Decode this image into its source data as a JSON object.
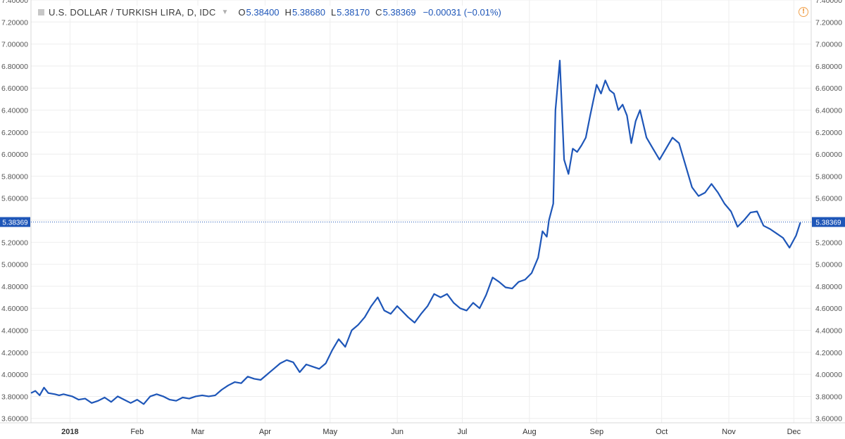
{
  "legend": {
    "title": "U.S. DOLLAR / TURKISH LIRA, D, IDC",
    "open_label": "O",
    "open": "5.38400",
    "high_label": "H",
    "high": "5.38680",
    "low_label": "L",
    "low": "5.38170",
    "close_label": "C",
    "close": "5.38369",
    "change": "−0.00031 (−0.01%)"
  },
  "colors": {
    "line": "#1e56b8",
    "grid": "#eeeeee",
    "axis_text": "#555555",
    "alert": "#f0a04b"
  },
  "icons": {
    "symbol": "square-icon",
    "menu": "chevron-down-icon",
    "alert": "exclamation-circle-icon"
  },
  "chart_data": {
    "type": "line",
    "title": "U.S. DOLLAR / TURKISH LIRA, D, IDC",
    "ylim": [
      3.56,
      7.4
    ],
    "yticks": [
      "3.60000",
      "3.80000",
      "4.00000",
      "4.20000",
      "4.40000",
      "4.60000",
      "4.80000",
      "5.00000",
      "5.20000",
      "5.40000",
      "5.60000",
      "5.80000",
      "6.00000",
      "6.20000",
      "6.40000",
      "6.60000",
      "6.80000",
      "7.00000",
      "7.20000",
      "7.40000"
    ],
    "xlim": [
      "2017-12-14",
      "2018-12-09"
    ],
    "xticks": [
      {
        "label": "2018",
        "date": "2018-01-01"
      },
      {
        "label": "Feb",
        "date": "2018-02-01"
      },
      {
        "label": "Mar",
        "date": "2018-03-01"
      },
      {
        "label": "Apr",
        "date": "2018-04-01"
      },
      {
        "label": "May",
        "date": "2018-05-01"
      },
      {
        "label": "Jun",
        "date": "2018-06-01"
      },
      {
        "label": "Jul",
        "date": "2018-07-01"
      },
      {
        "label": "Aug",
        "date": "2018-08-01"
      },
      {
        "label": "Sep",
        "date": "2018-09-01"
      },
      {
        "label": "Oct",
        "date": "2018-10-01"
      },
      {
        "label": "Nov",
        "date": "2018-11-01"
      },
      {
        "label": "Dec",
        "date": "2018-12-01"
      }
    ],
    "last_price": "5.38369",
    "last_value": 5.38369,
    "grid": true,
    "series": [
      {
        "x": [
          "2017-12-14",
          "2017-12-16",
          "2017-12-18",
          "2017-12-20",
          "2017-12-22",
          "2017-12-25",
          "2017-12-27",
          "2017-12-29",
          "2018-01-02",
          "2018-01-05",
          "2018-01-08",
          "2018-01-11",
          "2018-01-14",
          "2018-01-17",
          "2018-01-20",
          "2018-01-23",
          "2018-01-26",
          "2018-01-29",
          "2018-02-01",
          "2018-02-04",
          "2018-02-07",
          "2018-02-10",
          "2018-02-13",
          "2018-02-16",
          "2018-02-19",
          "2018-02-22",
          "2018-02-25",
          "2018-02-28",
          "2018-03-03",
          "2018-03-06",
          "2018-03-09",
          "2018-03-12",
          "2018-03-15",
          "2018-03-18",
          "2018-03-21",
          "2018-03-24",
          "2018-03-27",
          "2018-03-30",
          "2018-04-02",
          "2018-04-05",
          "2018-04-08",
          "2018-04-11",
          "2018-04-14",
          "2018-04-17",
          "2018-04-20",
          "2018-04-23",
          "2018-04-26",
          "2018-04-29",
          "2018-05-02",
          "2018-05-05",
          "2018-05-08",
          "2018-05-11",
          "2018-05-14",
          "2018-05-17",
          "2018-05-20",
          "2018-05-23",
          "2018-05-26",
          "2018-05-29",
          "2018-06-01",
          "2018-06-03",
          "2018-06-06",
          "2018-06-09",
          "2018-06-12",
          "2018-06-15",
          "2018-06-18",
          "2018-06-21",
          "2018-06-24",
          "2018-06-27",
          "2018-06-30",
          "2018-07-03",
          "2018-07-06",
          "2018-07-09",
          "2018-07-12",
          "2018-07-15",
          "2018-07-18",
          "2018-07-21",
          "2018-07-24",
          "2018-07-27",
          "2018-07-30",
          "2018-08-02",
          "2018-08-05",
          "2018-08-07",
          "2018-08-09",
          "2018-08-10",
          "2018-08-12",
          "2018-08-13",
          "2018-08-15",
          "2018-08-17",
          "2018-08-19",
          "2018-08-21",
          "2018-08-23",
          "2018-08-25",
          "2018-08-27",
          "2018-08-29",
          "2018-09-01",
          "2018-09-03",
          "2018-09-05",
          "2018-09-07",
          "2018-09-09",
          "2018-09-11",
          "2018-09-13",
          "2018-09-15",
          "2018-09-17",
          "2018-09-19",
          "2018-09-21",
          "2018-09-24",
          "2018-09-27",
          "2018-09-30",
          "2018-10-03",
          "2018-10-06",
          "2018-10-09",
          "2018-10-12",
          "2018-10-15",
          "2018-10-18",
          "2018-10-21",
          "2018-10-24",
          "2018-10-27",
          "2018-10-30",
          "2018-11-02",
          "2018-11-05",
          "2018-11-08",
          "2018-11-11",
          "2018-11-14",
          "2018-11-17",
          "2018-11-20",
          "2018-11-23",
          "2018-11-26",
          "2018-11-29",
          "2018-12-02",
          "2018-12-04"
        ],
        "values": [
          3.83,
          3.85,
          3.81,
          3.88,
          3.83,
          3.82,
          3.81,
          3.82,
          3.8,
          3.77,
          3.78,
          3.74,
          3.76,
          3.79,
          3.75,
          3.8,
          3.77,
          3.74,
          3.77,
          3.73,
          3.8,
          3.82,
          3.8,
          3.77,
          3.76,
          3.79,
          3.78,
          3.8,
          3.81,
          3.8,
          3.81,
          3.86,
          3.9,
          3.93,
          3.92,
          3.98,
          3.96,
          3.95,
          4.0,
          4.05,
          4.1,
          4.13,
          4.11,
          4.02,
          4.09,
          4.07,
          4.05,
          4.1,
          4.22,
          4.32,
          4.25,
          4.4,
          4.45,
          4.52,
          4.62,
          4.7,
          4.58,
          4.55,
          4.62,
          4.58,
          4.52,
          4.47,
          4.55,
          4.62,
          4.73,
          4.7,
          4.73,
          4.65,
          4.6,
          4.58,
          4.65,
          4.6,
          4.72,
          4.88,
          4.84,
          4.79,
          4.78,
          4.84,
          4.86,
          4.92,
          5.06,
          5.3,
          5.25,
          5.4,
          5.55,
          6.4,
          6.85,
          5.95,
          5.82,
          6.05,
          6.02,
          6.08,
          6.15,
          6.35,
          6.63,
          6.55,
          6.67,
          6.58,
          6.55,
          6.4,
          6.45,
          6.35,
          6.1,
          6.3,
          6.4,
          6.15,
          6.05,
          5.95,
          6.05,
          6.15,
          6.1,
          5.9,
          5.7,
          5.62,
          5.65,
          5.73,
          5.65,
          5.55,
          5.48,
          5.34,
          5.4,
          5.47,
          5.48,
          5.35,
          5.32,
          5.28,
          5.24,
          5.15,
          5.26,
          5.38
        ]
      }
    ]
  }
}
